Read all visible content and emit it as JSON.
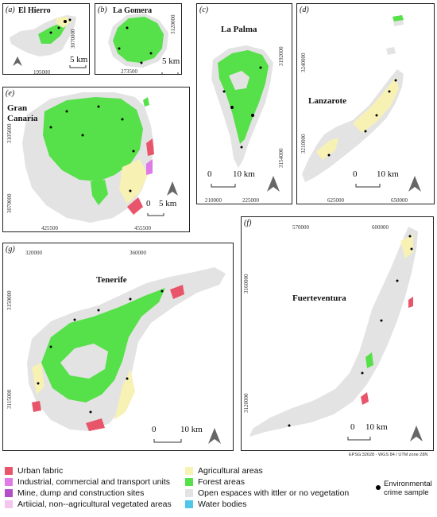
{
  "colors": {
    "urban": "#e8556a",
    "industrial": "#e07be6",
    "mine": "#b24fc7",
    "artificial_veg": "#f2c6ee",
    "agricultural": "#f7f2b4",
    "forest": "#56e04a",
    "open_space": "#e3e3e3",
    "water": "#4ec7e8",
    "crime": "#000000"
  },
  "panels": {
    "a": {
      "letter": "(a)",
      "name": "El Hierro",
      "xtick": "195000",
      "ytick": "3070000",
      "scale": "5 km"
    },
    "b": {
      "letter": "(b)",
      "name": "La Gomera",
      "xtick": "273500",
      "ytick": "3120000",
      "scale": "5 km"
    },
    "c": {
      "letter": "(c)",
      "name": "La Palma",
      "xticks": [
        "210000",
        "225000"
      ],
      "yticks": [
        "3192000",
        "3154000"
      ],
      "scale_zero": "0",
      "scale": "10 km"
    },
    "d": {
      "letter": "(d)",
      "name": "Lanzarote",
      "xticks": [
        "625000",
        "650000"
      ],
      "yticks": [
        "3240000",
        "3210000"
      ],
      "scale_zero": "0",
      "scale": "10 km"
    },
    "e": {
      "letter": "(e)",
      "name": "Gran Canaria",
      "xticks": [
        "425500",
        "455500"
      ],
      "yticks": [
        "3105000",
        "3070000"
      ],
      "scale_zero": "0",
      "scale": "5 km"
    },
    "f": {
      "letter": "(f)",
      "name": "Fuerteventura",
      "xticks": [
        "570000",
        "600000"
      ],
      "yticks": [
        "3160000",
        "3120000"
      ],
      "scale_zero": "0",
      "scale": "10 km"
    },
    "g": {
      "letter": "(g)",
      "name": "Tenerife",
      "xticks": [
        "320000",
        "360000"
      ],
      "yticks": [
        "3150000",
        "3115000"
      ],
      "scale_zero": "0",
      "scale": "10 km"
    }
  },
  "crs_note": "EPSG:32628 - WGS 84 / UTM zone 28N",
  "legend": {
    "urban": "Urban fabric",
    "industrial": "Industrial, commercial and transport units",
    "mine": "Mine, dump and construction sites",
    "artificial_veg": "Artiicial, non--agricultural vegetated areas",
    "agricultural": "Agricultural areas",
    "forest": "Forest areas",
    "open_space": "Open espaces with ittler or no vegetation",
    "water": "Water bodies",
    "crime_line1": "Environmental",
    "crime_line2": "crime sample"
  }
}
